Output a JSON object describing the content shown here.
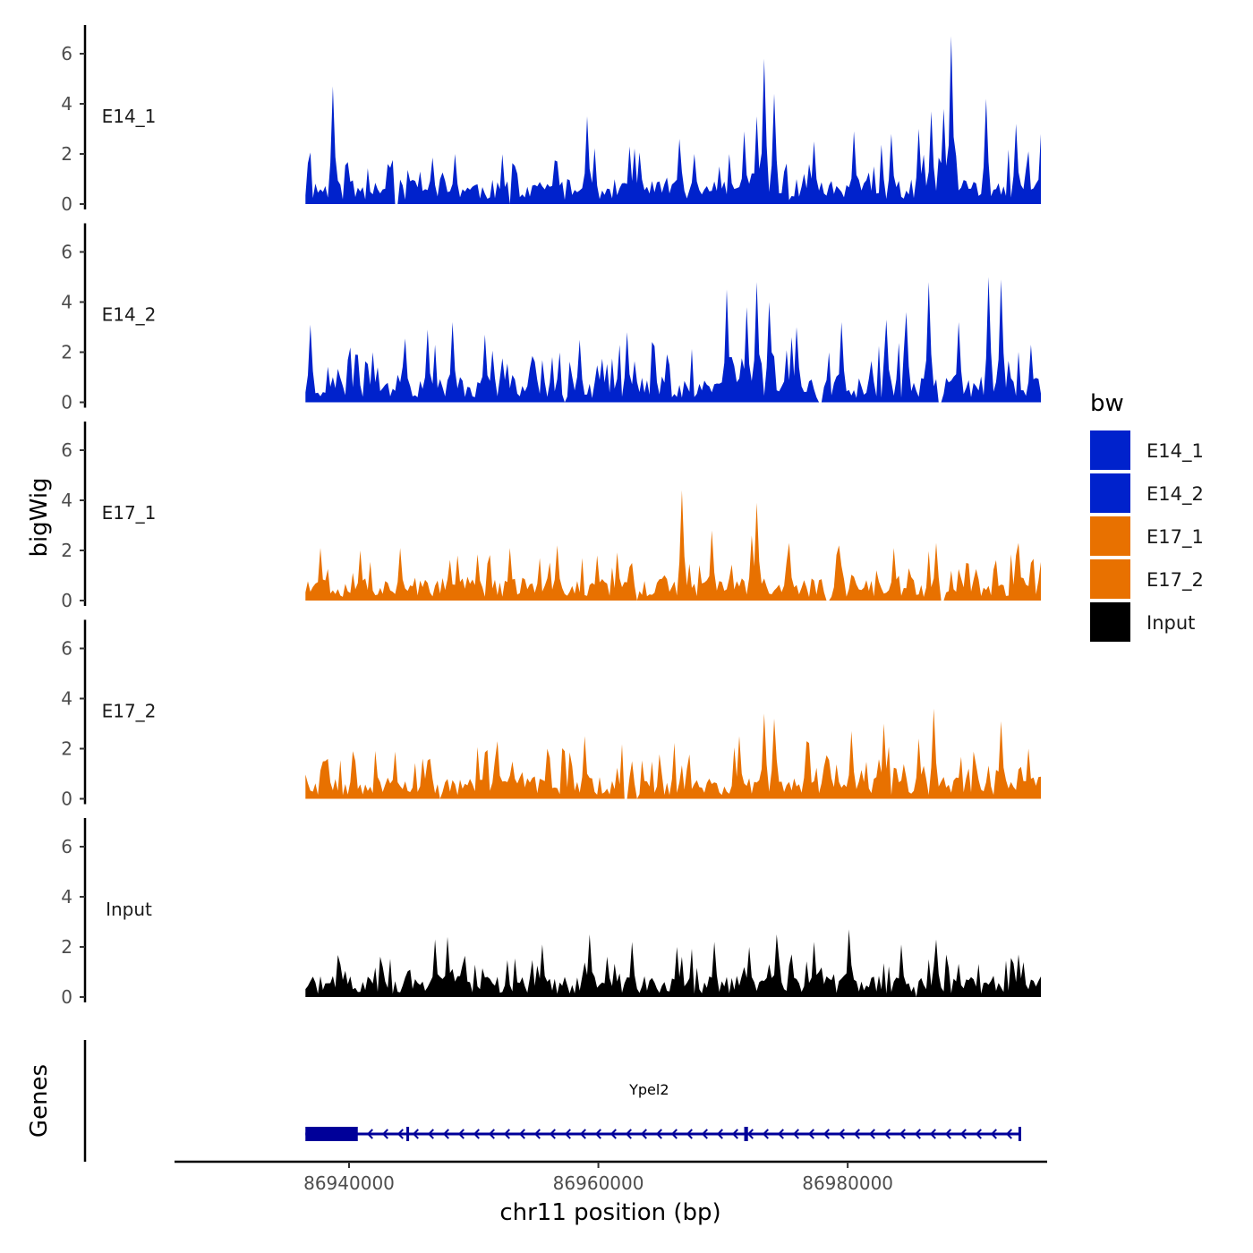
{
  "chart_data": {
    "type": "area",
    "subtype": "genome-track",
    "chromosome": "chr11",
    "xlabel": "chr11 position (bp)",
    "ylabel": "bigWig",
    "gene_panel_label": "Genes",
    "xlim": [
      86926000,
      86996000
    ],
    "data_range": [
      86936500,
      86995500
    ],
    "xticks": [
      86940000,
      86960000,
      86980000
    ],
    "xtick_labels": [
      "86940000",
      "86960000",
      "86980000"
    ],
    "ylim": [
      0,
      7
    ],
    "yticks": [
      0,
      2,
      4,
      6
    ],
    "ytick_labels": [
      "0",
      "2",
      "4",
      "6"
    ],
    "bin_size_bp": 200,
    "legend": {
      "title": "bw",
      "entries": [
        {
          "label": "E14_1",
          "color": "#0022CC"
        },
        {
          "label": "E14_2",
          "color": "#0022CC"
        },
        {
          "label": "E17_1",
          "color": "#E87100"
        },
        {
          "label": "E17_2",
          "color": "#E87100"
        },
        {
          "label": "Input",
          "color": "#000000"
        }
      ]
    },
    "series": [
      {
        "name": "E14_1",
        "color": "#0022CC",
        "baseline": 1.0,
        "noise": 0.9,
        "seed": 11,
        "gaps": [
          [
            86943700,
            86943900
          ],
          [
            86952800,
            86953000
          ]
        ],
        "peaks": [
          {
            "x": 86938700,
            "y": 4.7
          },
          {
            "x": 86943000,
            "y": 1.6
          },
          {
            "x": 86945700,
            "y": 1.3
          },
          {
            "x": 86948400,
            "y": 2.0
          },
          {
            "x": 86952300,
            "y": 1.7
          },
          {
            "x": 86959100,
            "y": 3.5
          },
          {
            "x": 86962500,
            "y": 2.3
          },
          {
            "x": 86966400,
            "y": 2.6
          },
          {
            "x": 86969600,
            "y": 1.5
          },
          {
            "x": 86971600,
            "y": 2.9
          },
          {
            "x": 86972700,
            "y": 3.5
          },
          {
            "x": 86973300,
            "y": 5.8
          },
          {
            "x": 86974000,
            "y": 4.4
          },
          {
            "x": 86977300,
            "y": 2.5
          },
          {
            "x": 86980400,
            "y": 2.9
          },
          {
            "x": 86983500,
            "y": 2.8
          },
          {
            "x": 86985600,
            "y": 3.0
          },
          {
            "x": 86986600,
            "y": 3.7
          },
          {
            "x": 86987600,
            "y": 3.8
          },
          {
            "x": 86988300,
            "y": 6.7
          },
          {
            "x": 86991000,
            "y": 4.2
          },
          {
            "x": 86993400,
            "y": 3.2
          },
          {
            "x": 86995400,
            "y": 2.8
          }
        ]
      },
      {
        "name": "E14_2",
        "color": "#0022CC",
        "baseline": 1.1,
        "noise": 1.0,
        "seed": 23,
        "gaps": [
          [
            86957200,
            86957400
          ],
          [
            86977700,
            86977900
          ],
          [
            86987300,
            86987500
          ]
        ],
        "peaks": [
          {
            "x": 86936800,
            "y": 3.1
          },
          {
            "x": 86941800,
            "y": 2.0
          },
          {
            "x": 86944500,
            "y": 2.4
          },
          {
            "x": 86946200,
            "y": 2.9
          },
          {
            "x": 86948200,
            "y": 3.2
          },
          {
            "x": 86950800,
            "y": 2.7
          },
          {
            "x": 86958400,
            "y": 2.3
          },
          {
            "x": 86962300,
            "y": 2.8
          },
          {
            "x": 86970200,
            "y": 4.5
          },
          {
            "x": 86971900,
            "y": 3.8
          },
          {
            "x": 86972600,
            "y": 4.8
          },
          {
            "x": 86973700,
            "y": 4.0
          },
          {
            "x": 86975800,
            "y": 3.0
          },
          {
            "x": 86979400,
            "y": 3.2
          },
          {
            "x": 86983000,
            "y": 3.3
          },
          {
            "x": 86984600,
            "y": 3.6
          },
          {
            "x": 86986400,
            "y": 4.8
          },
          {
            "x": 86988800,
            "y": 3.2
          },
          {
            "x": 86991200,
            "y": 5.0
          },
          {
            "x": 86992200,
            "y": 4.9
          },
          {
            "x": 86994700,
            "y": 2.3
          }
        ]
      },
      {
        "name": "E17_1",
        "color": "#E87100",
        "baseline": 0.9,
        "noise": 0.8,
        "seed": 37,
        "gaps": [
          [
            86962900,
            86963100
          ],
          [
            86978300,
            86978500
          ],
          [
            86987500,
            86987700
          ]
        ],
        "peaks": [
          {
            "x": 86937600,
            "y": 2.1
          },
          {
            "x": 86940900,
            "y": 2.0
          },
          {
            "x": 86944000,
            "y": 2.1
          },
          {
            "x": 86948700,
            "y": 1.8
          },
          {
            "x": 86952800,
            "y": 2.1
          },
          {
            "x": 86956700,
            "y": 2.2
          },
          {
            "x": 86959800,
            "y": 1.8
          },
          {
            "x": 86962600,
            "y": 1.5
          },
          {
            "x": 86966600,
            "y": 4.4
          },
          {
            "x": 86969100,
            "y": 2.8
          },
          {
            "x": 86972300,
            "y": 2.6
          },
          {
            "x": 86972700,
            "y": 3.9
          },
          {
            "x": 86975300,
            "y": 2.3
          },
          {
            "x": 86979200,
            "y": 2.2
          },
          {
            "x": 86983600,
            "y": 2.1
          },
          {
            "x": 86987100,
            "y": 2.3
          },
          {
            "x": 86989400,
            "y": 1.5
          },
          {
            "x": 86993700,
            "y": 2.3
          }
        ]
      },
      {
        "name": "E17_2",
        "color": "#E87100",
        "baseline": 0.9,
        "noise": 0.9,
        "seed": 53,
        "gaps": [
          [
            86947200,
            86947400
          ],
          [
            86962100,
            86962300
          ],
          [
            86962900,
            86963100
          ]
        ],
        "peaks": [
          {
            "x": 86940300,
            "y": 1.9
          },
          {
            "x": 86946500,
            "y": 1.6
          },
          {
            "x": 86951800,
            "y": 2.3
          },
          {
            "x": 86955800,
            "y": 2.0
          },
          {
            "x": 86958800,
            "y": 2.5
          },
          {
            "x": 86962700,
            "y": 1.5
          },
          {
            "x": 86971300,
            "y": 2.5
          },
          {
            "x": 86973300,
            "y": 3.4
          },
          {
            "x": 86974100,
            "y": 3.2
          },
          {
            "x": 86976600,
            "y": 2.3
          },
          {
            "x": 86980300,
            "y": 2.7
          },
          {
            "x": 86982800,
            "y": 3.0
          },
          {
            "x": 86985700,
            "y": 2.4
          },
          {
            "x": 86986800,
            "y": 3.6
          },
          {
            "x": 86992200,
            "y": 3.1
          },
          {
            "x": 86994400,
            "y": 2.0
          }
        ]
      },
      {
        "name": "Input",
        "color": "#000000",
        "baseline": 0.85,
        "noise": 0.75,
        "seed": 71,
        "gaps": [
          [
            86985400,
            86985600
          ]
        ],
        "peaks": [
          {
            "x": 86946800,
            "y": 2.3
          },
          {
            "x": 86947800,
            "y": 2.4
          },
          {
            "x": 86955500,
            "y": 2.1
          },
          {
            "x": 86959200,
            "y": 2.5
          },
          {
            "x": 86962600,
            "y": 2.2
          },
          {
            "x": 86966200,
            "y": 2.0
          },
          {
            "x": 86969200,
            "y": 2.2
          },
          {
            "x": 86972100,
            "y": 2.0
          },
          {
            "x": 86974300,
            "y": 2.5
          },
          {
            "x": 86977300,
            "y": 2.2
          },
          {
            "x": 86980100,
            "y": 2.7
          },
          {
            "x": 86984200,
            "y": 2.1
          },
          {
            "x": 86987000,
            "y": 2.3
          },
          {
            "x": 86993700,
            "y": 1.7
          }
        ]
      }
    ],
    "genes": [
      {
        "name": "Ypel2",
        "strand": "-",
        "color": "#000099",
        "start": 86936500,
        "end": 86993800,
        "exons": [
          [
            86936500,
            86940700
          ],
          [
            86944600,
            86944700
          ],
          [
            86971700,
            86972000
          ],
          [
            86993700,
            86993800
          ]
        ]
      }
    ]
  }
}
